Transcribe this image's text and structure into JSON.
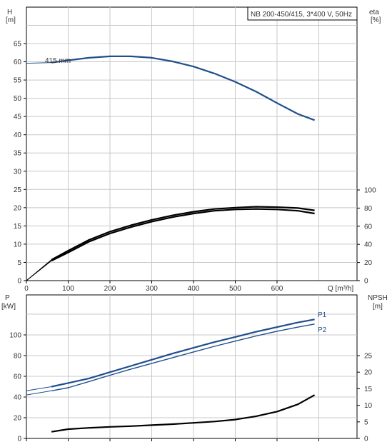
{
  "chart_data": [
    {
      "type": "line",
      "title": "NB 200-450/415, 3*400 V, 50Hz",
      "xlabel": "Q [m³/h]",
      "x_ticks": [
        "0",
        "100",
        "200",
        "300",
        "400",
        "500",
        "600"
      ],
      "xlim": [
        0,
        720
      ],
      "y_left": {
        "label_top": "H",
        "label_unit": "[m]",
        "ylim": [
          0,
          70
        ],
        "ticks": [
          "0",
          "5",
          "10",
          "15",
          "20",
          "25",
          "30",
          "35",
          "40",
          "45",
          "50",
          "55",
          "60",
          "65"
        ]
      },
      "y_right": {
        "label_top": "eta",
        "label_unit": "[%]",
        "ylim": [
          0,
          100
        ],
        "ticks": [
          "0",
          "20",
          "40",
          "60",
          "80",
          "100"
        ]
      },
      "series": [
        {
          "name": "415 mm",
          "axis": "left",
          "color": "#1f4e8c",
          "x": [
            0,
            60,
            100,
            150,
            200,
            250,
            300,
            350,
            400,
            450,
            500,
            550,
            600,
            650,
            690
          ],
          "y": [
            59.6,
            59.8,
            60.4,
            61.1,
            61.5,
            61.5,
            61.1,
            60.1,
            58.7,
            56.8,
            54.5,
            51.8,
            48.7,
            45.7,
            44.0
          ]
        },
        {
          "name": "",
          "axis": "right",
          "color": "#000000",
          "x": [
            0,
            60,
            100,
            150,
            200,
            250,
            300,
            350,
            400,
            450,
            500,
            550,
            600,
            650,
            690
          ],
          "y": [
            0,
            23,
            33,
            45,
            54,
            61,
            67,
            72,
            76,
            79,
            80.5,
            81.5,
            81,
            80,
            77.5
          ]
        },
        {
          "name": "",
          "axis": "right",
          "color": "#000000",
          "x": [
            0,
            60,
            100,
            150,
            200,
            250,
            300,
            350,
            400,
            450,
            500,
            550,
            600,
            650,
            690
          ],
          "y": [
            0,
            22,
            31,
            43,
            52,
            59,
            65,
            70,
            74,
            77,
            78.5,
            79,
            78.5,
            77,
            74
          ]
        }
      ]
    },
    {
      "type": "line",
      "xlim": [
        0,
        720
      ],
      "y_left": {
        "label_top": "P",
        "label_unit": "[kW]",
        "ylim": [
          0,
          120
        ],
        "ticks": [
          "0",
          "20",
          "40",
          "60",
          "80",
          "100"
        ]
      },
      "y_right": {
        "label_top": "NPSH",
        "label_unit": "[m]",
        "ylim": [
          0,
          30
        ],
        "ticks": [
          "0",
          "5",
          "10",
          "15",
          "20",
          "25"
        ]
      },
      "series": [
        {
          "name": "P1",
          "axis": "left",
          "color": "#1f4e8c",
          "x": [
            0,
            60,
            100,
            150,
            200,
            250,
            300,
            350,
            400,
            450,
            500,
            550,
            600,
            650,
            690
          ],
          "y": [
            46,
            50,
            53.5,
            58,
            64,
            70,
            76,
            82,
            87.5,
            93,
            98,
            103,
            107.5,
            112,
            115
          ]
        },
        {
          "name": "P2",
          "axis": "left",
          "color": "#1f4e8c",
          "x": [
            0,
            60,
            100,
            150,
            200,
            250,
            300,
            350,
            400,
            450,
            500,
            550,
            600,
            650,
            690
          ],
          "y": [
            42,
            46,
            49,
            55,
            61,
            67,
            72.5,
            78,
            83.5,
            89,
            94,
            99,
            103.5,
            107.5,
            110.5
          ]
        },
        {
          "name": "",
          "axis": "right",
          "color": "#000000",
          "x": [
            60,
            100,
            150,
            200,
            250,
            300,
            350,
            400,
            450,
            500,
            550,
            600,
            650,
            690
          ],
          "y": [
            2,
            2.8,
            3.2,
            3.5,
            3.7,
            4.0,
            4.3,
            4.7,
            5.1,
            5.7,
            6.7,
            8.1,
            10.3,
            13.1
          ]
        }
      ]
    }
  ]
}
